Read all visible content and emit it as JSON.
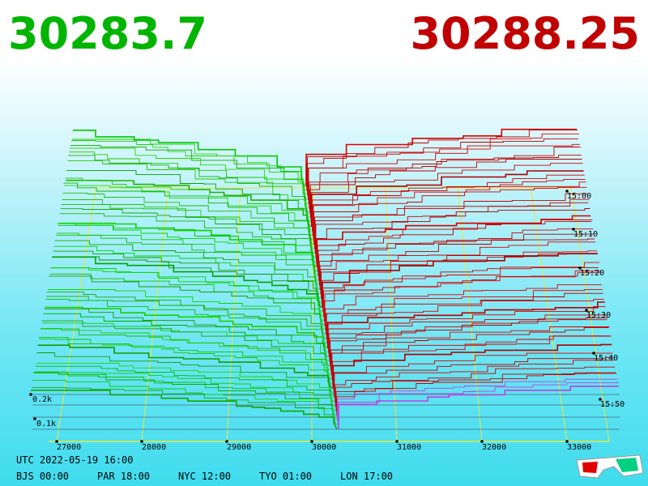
{
  "bid_price": "30283.7",
  "ask_price": "30288.25",
  "price_ticks": [
    "27000",
    "28000",
    "29000",
    "30000",
    "31000",
    "32000",
    "33000"
  ],
  "depth_ticks": [
    "0.2k",
    "0.1k"
  ],
  "time_ticks": [
    "15:00",
    "15:10",
    "15:20",
    "15:30",
    "15:40",
    "15:50"
  ],
  "footer": {
    "utc": "UTC 2022-05-19 16:00",
    "zones": [
      "BJS 00:00",
      "PAR 18:00",
      "NYC 12:00",
      "TYO 01:00",
      "LON 17:00"
    ]
  }
}
